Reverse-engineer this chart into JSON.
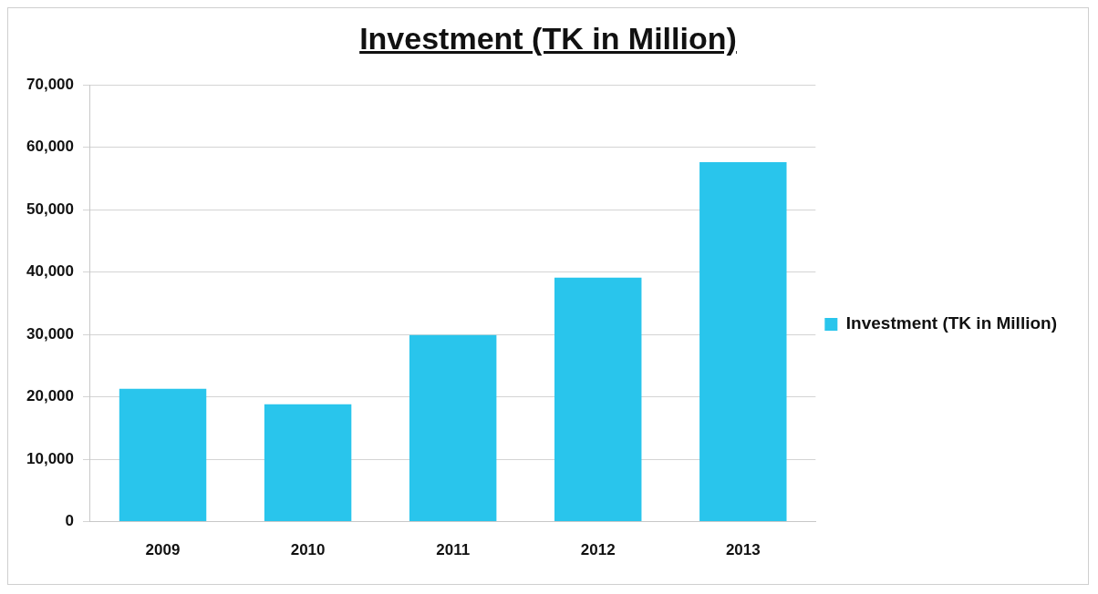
{
  "chart_data": {
    "type": "bar",
    "title": "Investment (TK in Million)",
    "categories": [
      "2009",
      "2010",
      "2011",
      "2012",
      "2013"
    ],
    "series": [
      {
        "name": "Investment (TK in Million)",
        "color": "#29c5ec",
        "values": [
          21300,
          18800,
          29900,
          39100,
          57600
        ]
      }
    ],
    "ylim": [
      0,
      70000
    ],
    "yticks": [
      {
        "value": 0,
        "label": "0"
      },
      {
        "value": 10000,
        "label": "10,000"
      },
      {
        "value": 20000,
        "label": "20,000"
      },
      {
        "value": 30000,
        "label": "30,000"
      },
      {
        "value": 40000,
        "label": "40,000"
      },
      {
        "value": 50000,
        "label": "50,000"
      },
      {
        "value": 60000,
        "label": "60,000"
      },
      {
        "value": 70000,
        "label": "70,000"
      }
    ],
    "grid": "y",
    "legend": "right"
  }
}
